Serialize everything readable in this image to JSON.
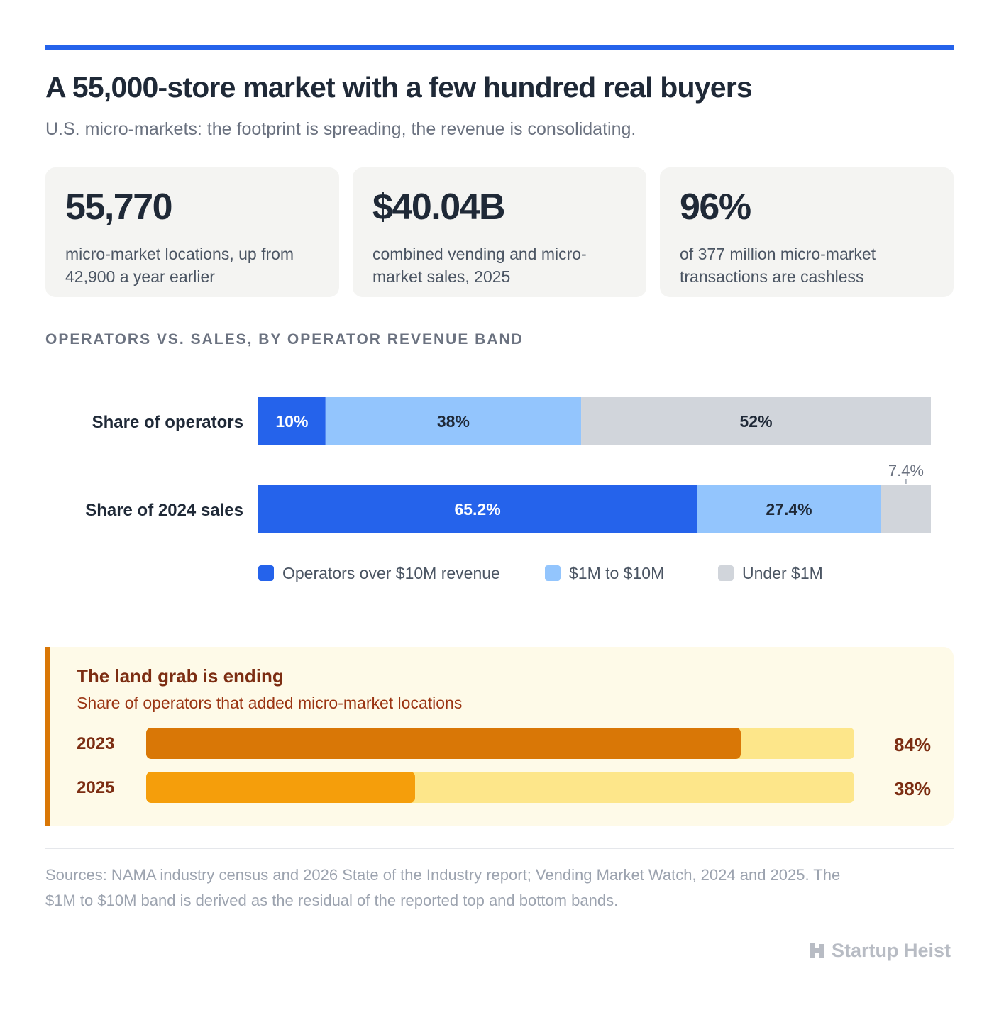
{
  "title": "A 55,000-store market with a few hundred real buyers",
  "subtitle": "U.S. micro-markets: the footprint is spreading, the revenue is consolidating.",
  "stats": [
    {
      "value": "55,770",
      "desc_line1": "micro-market locations, up from",
      "desc_line2": "42,900 a year earlier"
    },
    {
      "value": "$40.04B",
      "desc_line1": "combined vending and micro-",
      "desc_line2": "market sales, 2025"
    },
    {
      "value": "96%",
      "desc_line1": "of 377 million micro-market",
      "desc_line2": "transactions are cashless"
    }
  ],
  "section_heading": "OPERATORS VS. SALES, BY OPERATOR REVENUE BAND",
  "legend": [
    {
      "label": "Operators over $10M revenue",
      "color": "#2563eb"
    },
    {
      "label": "$1M to $10M",
      "color": "#93c5fd"
    },
    {
      "label": "Under $1M",
      "color": "#d1d5db"
    }
  ],
  "chart_data": [
    {
      "type": "bar",
      "orientation": "horizontal-stacked-100",
      "categories": [
        "Share of operators",
        "Share of 2024 sales"
      ],
      "series": [
        {
          "name": "Operators over $10M revenue",
          "values": [
            10,
            65.2
          ],
          "labels": [
            "10%",
            "65.2%"
          ],
          "color": "#2563eb"
        },
        {
          "name": "$1M to $10M",
          "values": [
            38,
            27.4
          ],
          "labels": [
            "38%",
            "27.4%"
          ],
          "color": "#93c5fd"
        },
        {
          "name": "Under $1M",
          "values": [
            52,
            7.4
          ],
          "labels": [
            "52%",
            "7.4%"
          ],
          "color": "#d1d5db"
        }
      ],
      "xlim": [
        0,
        100
      ],
      "legend_position": "bottom"
    },
    {
      "type": "bar",
      "orientation": "horizontal",
      "title": "The land grab is ending",
      "subtitle": "Share of operators that added micro-market locations",
      "categories": [
        "2023",
        "2025"
      ],
      "values": [
        84,
        38
      ],
      "labels": [
        "84%",
        "38%"
      ],
      "colors": [
        "#d97706",
        "#f59e0b"
      ],
      "track_color": "#fde68a",
      "xlim": [
        0,
        100
      ]
    }
  ],
  "sources_line1": "Sources: NAMA industry census and 2026 State of the Industry report; Vending Market Watch, 2024 and 2025. The",
  "sources_line2": "$1M to $10M band is derived as the residual of the reported top and bottom bands.",
  "brand": "Startup Heist"
}
